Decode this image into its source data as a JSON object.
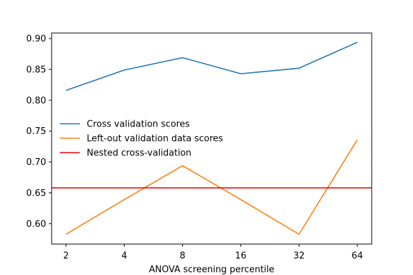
{
  "chart_data": {
    "type": "line",
    "title": "",
    "xlabel": "ANOVA screening percentile",
    "ylabel": "",
    "x_categories": [
      "2",
      "4",
      "8",
      "16",
      "32",
      "64"
    ],
    "ylim": [
      0.567,
      0.909
    ],
    "yticks": [
      "0.60",
      "0.65",
      "0.70",
      "0.75",
      "0.80",
      "0.85",
      "0.90"
    ],
    "grid": false,
    "legend": {
      "placement": "center-left",
      "frame": false,
      "entries": [
        "Cross validation scores",
        "Left-out validation data scores",
        "Nested cross-validation"
      ]
    },
    "series": [
      {
        "name": "Cross validation scores",
        "color": "#1f77b4",
        "style": "line",
        "values": [
          0.816,
          0.849,
          0.869,
          0.843,
          0.852,
          0.894
        ]
      },
      {
        "name": "Left-out validation data scores",
        "color": "#ff7f0e",
        "style": "line",
        "values": [
          0.583,
          0.639,
          0.694,
          0.639,
          0.583,
          0.736
        ]
      },
      {
        "name": "Nested cross-validation",
        "color": "#ee0000",
        "style": "hline",
        "value": 0.658
      }
    ]
  }
}
